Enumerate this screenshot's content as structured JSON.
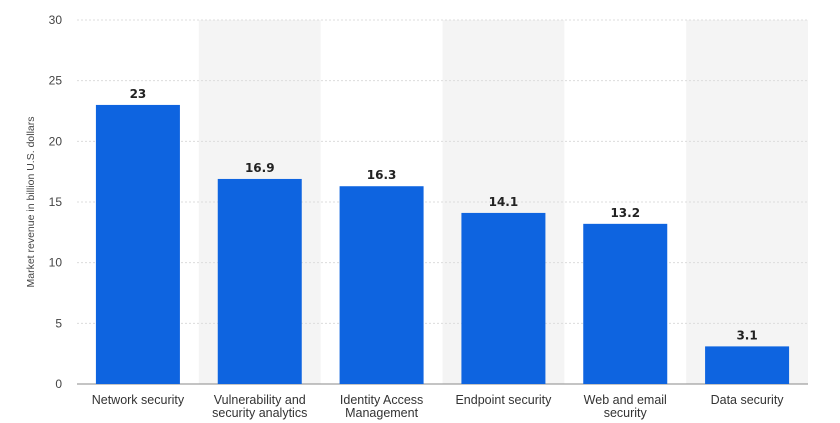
{
  "chart_data": {
    "type": "bar",
    "title": "",
    "xlabel": "",
    "ylabel": "Market revenue in billion U.S. dollars",
    "ylim": [
      0,
      30
    ],
    "yticks": [
      0,
      5,
      10,
      15,
      20,
      25,
      30
    ],
    "grid": true,
    "categories": [
      [
        "Network security"
      ],
      [
        "Vulnerability and",
        "security analytics"
      ],
      [
        "Identity Access",
        "Management"
      ],
      [
        "Endpoint security"
      ],
      [
        "Web and email",
        "security"
      ],
      [
        "Data security"
      ]
    ],
    "values": [
      23,
      16.9,
      16.3,
      14.1,
      13.2,
      3.1
    ],
    "value_labels": [
      "23",
      "16.9",
      "16.3",
      "14.1",
      "13.2",
      "3.1"
    ],
    "colors": {
      "bar": "#0e64e0",
      "band": "#f4f4f4",
      "grid": "#dcdcdc",
      "axis": "#8a8a8a"
    }
  }
}
